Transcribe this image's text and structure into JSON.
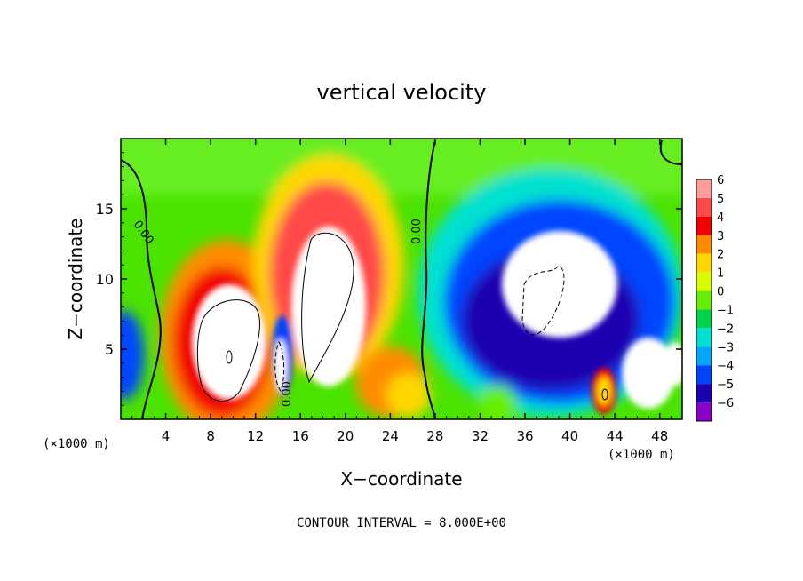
{
  "chart_data": {
    "type": "heatmap",
    "title": "vertical velocity",
    "xlabel": "X−coordinate",
    "ylabel": "Z−coordinate",
    "x_unit_left": "(×1000 m)",
    "x_unit_right": "(×1000 m)",
    "xlim": [
      0,
      50
    ],
    "ylim": [
      0,
      20
    ],
    "x_ticks": [
      4,
      8,
      12,
      16,
      20,
      24,
      28,
      32,
      36,
      40,
      44,
      48
    ],
    "y_ticks": [
      5,
      10,
      15
    ],
    "footer": "CONTOUR INTERVAL = 8.000E+00",
    "colorbar": {
      "levels": [
        6,
        5,
        4,
        3,
        2,
        1,
        0,
        -1,
        -2,
        -3,
        -4,
        -5,
        -6
      ],
      "labels": [
        "6",
        "5",
        "4",
        "3",
        "2",
        "1",
        "0",
        "−1",
        "−2",
        "−3",
        "−4",
        "−5",
        "−6"
      ],
      "colors": [
        "#ff9c9c",
        "#ff4a4a",
        "#f20000",
        "#ff8c00",
        "#ffd700",
        "#d7ff00",
        "#66ee00",
        "#00d44a",
        "#00e0d0",
        "#00a6ff",
        "#0044ff",
        "#1a00b0",
        "#8a00c8"
      ]
    },
    "contour_labels": [
      "0.00",
      "0.00",
      "0.00"
    ],
    "features": [
      {
        "x": 9.5,
        "z": 6.5,
        "w": 8
      },
      {
        "x": 14.8,
        "z": 3.5,
        "w": -8
      },
      {
        "x": 18.5,
        "z": 9.5,
        "w": 8
      },
      {
        "x": 38,
        "z": 8.5,
        "w": -8
      },
      {
        "x": 42.8,
        "z": 2,
        "w": 6
      },
      {
        "x": 47,
        "z": 4,
        "w": -8
      },
      {
        "x": 1,
        "z": 5,
        "w": -3
      }
    ]
  }
}
